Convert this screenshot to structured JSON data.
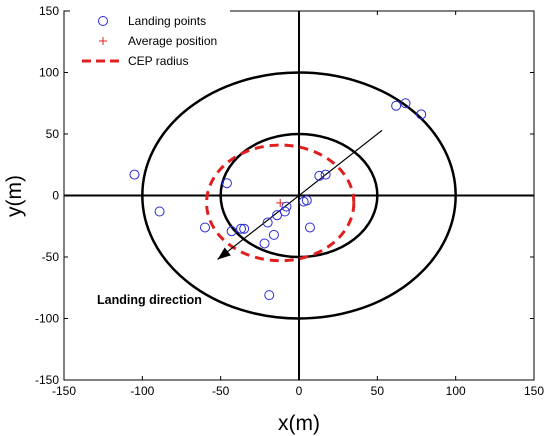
{
  "chart_data": {
    "type": "scatter",
    "xlabel": "x(m)",
    "ylabel": "y(m)",
    "xlim": [
      -150,
      150
    ],
    "ylim": [
      -150,
      150
    ],
    "xticks": [
      -150,
      -100,
      -50,
      0,
      50,
      100,
      150
    ],
    "yticks": [
      -150,
      -100,
      -50,
      0,
      50,
      100,
      150
    ],
    "grid": false,
    "legend_position": "top-left",
    "legend": [
      {
        "label": "Landing points",
        "marker": "circle",
        "color": "#2b2bd6"
      },
      {
        "label": "Average position",
        "marker": "plus",
        "color": "#e02020"
      },
      {
        "label": "CEP radius",
        "marker": "dashed-line",
        "color": "#e02020"
      }
    ],
    "series": [
      {
        "name": "Landing points",
        "type": "scatter",
        "color": "#2b2bd6",
        "x": [
          -105,
          -89,
          -60,
          -46,
          -43,
          -37,
          -35,
          -22,
          -20,
          -16,
          -14,
          -9,
          -8,
          3,
          5,
          7,
          13,
          17,
          62,
          68,
          78,
          -19
        ],
        "y": [
          17,
          -13,
          -26,
          10,
          -29,
          -27,
          -27,
          -39,
          -22,
          -32,
          -16,
          -13,
          -9,
          -5,
          -4,
          -26,
          16,
          17,
          73,
          75,
          66,
          -81
        ]
      },
      {
        "name": "Average position",
        "type": "marker",
        "color": "#e02020",
        "x": [
          -12
        ],
        "y": [
          -6
        ]
      }
    ],
    "reference_circles": [
      {
        "center": [
          0,
          0
        ],
        "radius": 50,
        "color": "#000000"
      },
      {
        "center": [
          0,
          0
        ],
        "radius": 100,
        "color": "#000000"
      }
    ],
    "cep_circle": {
      "center": [
        -12,
        -6
      ],
      "radius": 47,
      "color": "#e02020"
    },
    "direction_arrow": {
      "from": [
        53,
        53
      ],
      "to": [
        -52,
        -52
      ]
    },
    "annotation": "Landing direction"
  }
}
